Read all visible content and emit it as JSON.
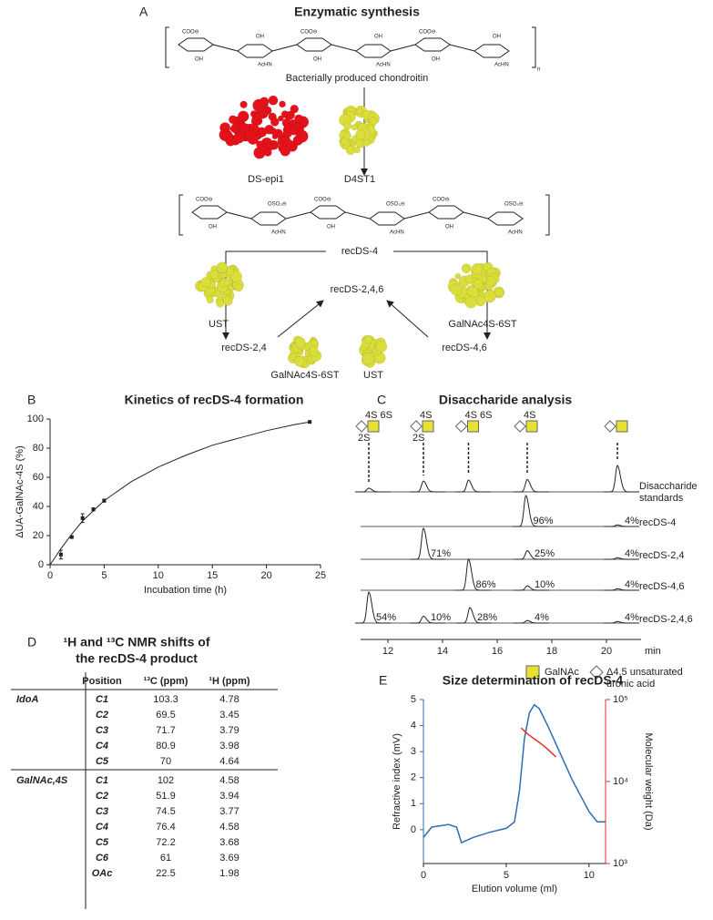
{
  "panel_a": {
    "letter": "A",
    "title": "Enzymatic synthesis",
    "substrate": "Bacterially produced chondroitin",
    "repeat": "n",
    "ring_labels": {
      "carboxyl": "COO⊖",
      "hydroxyl": "OH",
      "acetamido": "AcHN",
      "sulfate": "OSO₃⊖"
    },
    "epimerase": "DS-epi1",
    "sulfotransferase": "D4ST1",
    "product": "recDS-4",
    "left_enzyme": "UST",
    "right_enzyme": "GalNAc4S-6ST",
    "left_product": "recDS-2,4",
    "right_product": "recDS-4,6",
    "final_product": "recDS-2,4,6",
    "left_final_enzyme": "GalNAc4S-6ST",
    "right_final_enzyme": "UST"
  },
  "chart_data": [
    {
      "type": "scatter",
      "letter": "B",
      "title": "Kinetics of recDS-4 formation",
      "xlabel": "Incubation time (h)",
      "ylabel": "ΔUA-GalNAc-4S (%)",
      "xlim": [
        0,
        25
      ],
      "ylim": [
        0,
        100
      ],
      "xticks": [
        0,
        5,
        10,
        15,
        20,
        25
      ],
      "yticks": [
        0,
        20,
        40,
        60,
        80,
        100
      ],
      "series": [
        {
          "style": "points",
          "color": "#222222",
          "x": [
            1,
            2,
            3,
            4,
            5,
            24
          ],
          "values": [
            7,
            19,
            32,
            38,
            44,
            98
          ],
          "errors": [
            3,
            0.5,
            3,
            1,
            1,
            0.5
          ]
        },
        {
          "style": "line",
          "color": "#222222",
          "x": [
            0,
            1,
            2,
            3,
            4,
            5,
            7.5,
            10,
            12.5,
            15,
            17.5,
            20,
            22.5,
            24
          ],
          "values": [
            0,
            11,
            21,
            30,
            37,
            44,
            57,
            67,
            75,
            82,
            87,
            92,
            96,
            98
          ]
        }
      ]
    },
    {
      "type": "chromatogram",
      "letter": "C",
      "title": "Disaccharide analysis",
      "xlim": [
        11,
        21
      ],
      "xticks": [
        12,
        14,
        16,
        18,
        20
      ],
      "xunit": "min",
      "standard_top": [
        "4S 6S",
        "4S",
        "4S 6S",
        "4S",
        null
      ],
      "standard_bottom": [
        "2S",
        "2S",
        null,
        null,
        null
      ],
      "series": [
        {
          "name": [
            "Disaccharide",
            "standards"
          ],
          "x": [
            11.3,
            13.3,
            14.95,
            17.1,
            20.4
          ],
          "values": [
            12,
            35,
            38,
            40,
            85
          ]
        },
        {
          "name": "recDS-4",
          "x": [
            17.05,
            20.4
          ],
          "values": [
            100,
            5
          ],
          "labels": [
            "96%",
            "4%"
          ]
        },
        {
          "name": "recDS-2,4",
          "x": [
            13.3,
            17.1,
            20.4
          ],
          "values": [
            100,
            28,
            5
          ],
          "labels": [
            "71%",
            "25%",
            "4%"
          ]
        },
        {
          "name": "recDS-4,6",
          "x": [
            14.95,
            17.1,
            20.4
          ],
          "values": [
            100,
            14,
            5
          ],
          "labels": [
            "86%",
            "10%",
            "4%"
          ]
        },
        {
          "name": "recDS-2,4,6",
          "x": [
            11.3,
            13.3,
            15.0,
            17.1,
            20.4
          ],
          "values": [
            100,
            22,
            50,
            8,
            5
          ],
          "labels": [
            "54%",
            "10%",
            "28%",
            "4%",
            "4%"
          ]
        }
      ],
      "legend": [
        {
          "name": "GalNAc",
          "shape": "square",
          "color": "#e6e232"
        },
        {
          "name": [
            "Δ4,5 unsaturated",
            "uronic acid"
          ],
          "shape": "diamond",
          "color": "#ffffff"
        }
      ]
    },
    {
      "type": "line",
      "letter": "E",
      "title": "Size determination of recDS-4",
      "xlabel": "Elution volume (ml)",
      "ylabel": "Refractive index (mV)",
      "y2label": "Molecular weight (Da)",
      "xlim": [
        0,
        11
      ],
      "xticks": [
        0,
        5,
        10
      ],
      "ylim": [
        -1.3,
        5
      ],
      "yticks": [
        0,
        1,
        2,
        3,
        4,
        5
      ],
      "y2lim": [
        1000,
        100000
      ],
      "y2log": true,
      "y2ticks": [
        {
          "value": 1000,
          "label": "10³"
        },
        {
          "value": 10000,
          "label": "10⁴"
        },
        {
          "value": 100000,
          "label": "10⁵"
        }
      ],
      "ycolor": "#2e6db4",
      "y2color": "#e0312a",
      "series": [
        {
          "color": "#2e6db4",
          "x": [
            0,
            0.5,
            1,
            1.5,
            2,
            2.3,
            3,
            4,
            5,
            5.5,
            5.8,
            6.1,
            6.4,
            6.7,
            7,
            7.5,
            8,
            8.5,
            9,
            9.5,
            10,
            10.5,
            11
          ],
          "values": [
            -0.3,
            0.1,
            0.15,
            0.2,
            0.1,
            -0.5,
            -0.3,
            -0.1,
            0.05,
            0.3,
            1.5,
            3.5,
            4.5,
            4.8,
            4.65,
            4.0,
            3.3,
            2.6,
            1.9,
            1.3,
            0.7,
            0.3,
            0.3
          ]
        },
        {
          "color": "#e0312a",
          "axis": "y2",
          "x": [
            5.9,
            6.3,
            6.8,
            7.3,
            8
          ],
          "values": [
            45000,
            38000,
            32000,
            27000,
            20000
          ]
        }
      ]
    }
  ],
  "table": {
    "letter": "D",
    "title": [
      "¹H and ¹³C NMR shifts of",
      "the recDS-4 product"
    ],
    "header": [
      "Position",
      "¹³C (ppm)",
      "¹H (ppm)"
    ],
    "groups": [
      {
        "name": "IdoA",
        "rows": [
          [
            "C1",
            "103.3",
            "4.78"
          ],
          [
            "C2",
            "69.5",
            "3.45"
          ],
          [
            "C3",
            "71.7",
            "3.79"
          ],
          [
            "C4",
            "80.9",
            "3.98"
          ],
          [
            "C5",
            "70",
            "4.64"
          ]
        ]
      },
      {
        "name": "GalNAc,4S",
        "rows": [
          [
            "C1",
            "102",
            "4.58"
          ],
          [
            "C2",
            "51.9",
            "3.94"
          ],
          [
            "C3",
            "74.5",
            "3.77"
          ],
          [
            "C4",
            "76.4",
            "4.58"
          ],
          [
            "C5",
            "72.2",
            "3.68"
          ],
          [
            "C6",
            "61",
            "3.69"
          ],
          [
            "OAc",
            "22.5",
            "1.98"
          ]
        ]
      }
    ]
  }
}
